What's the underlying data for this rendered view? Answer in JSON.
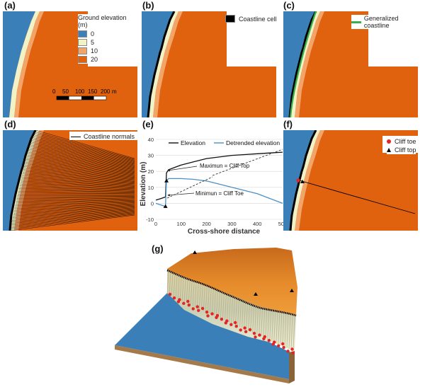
{
  "colors": {
    "sea": "#3b7fb8",
    "e5": "#f1f2c6",
    "e10": "#f3a469",
    "e20": "#e0620f",
    "coastline": "#000000",
    "generalized": "#36b04a",
    "elevation_line": "#111111",
    "detrended_line": "#4a90c8",
    "toe": "#e52424",
    "top": "#000000"
  },
  "panels": {
    "a": {
      "label": "(a)",
      "legend_title": "Ground elevation (m)",
      "legend": [
        {
          "value": "0",
          "color": "#3b7fb8"
        },
        {
          "value": "5",
          "color": "#f1f2c6"
        },
        {
          "value": "10",
          "color": "#f3a469"
        },
        {
          "value": "20",
          "color": "#e0620f"
        }
      ],
      "scale_ticks": [
        "0",
        "50",
        "100",
        "150",
        "200"
      ],
      "scale_unit": "m"
    },
    "b": {
      "label": "(b)",
      "legend": "Coastline cell"
    },
    "c": {
      "label": "(c)",
      "legend": "Generalized coastline"
    },
    "d": {
      "label": "(d)",
      "legend": "Coastline normals"
    },
    "e": {
      "label": "(e)",
      "legend_elevation": "Elevation",
      "legend_detrended": "Detrended elevation",
      "annotation_max": "Maximun = Cliff Top",
      "annotation_min": "Minimun = Cliff Toe"
    },
    "f": {
      "label": "(f)",
      "legend_toe": "Cliff toe",
      "legend_top": "Cliff top"
    },
    "g": {
      "label": "(g)"
    }
  },
  "chart_data": {
    "type": "line",
    "xlabel": "Cross-shore distance",
    "ylabel": "Elevation (m)",
    "xlim": [
      0,
      500
    ],
    "ylim": [
      -10,
      40
    ],
    "xticks": [
      "0",
      "100",
      "200",
      "300",
      "400",
      "500"
    ],
    "yticks": [
      "-10",
      "0",
      "10",
      "20",
      "30",
      "40"
    ],
    "series": [
      {
        "name": "Elevation",
        "x": [
          0,
          20,
          38,
          42,
          50,
          100,
          150,
          200,
          250,
          300,
          350,
          400,
          450,
          500
        ],
        "y": [
          2,
          3,
          4,
          19,
          21,
          24,
          26,
          28,
          29,
          30,
          30.5,
          31,
          31.5,
          32
        ]
      },
      {
        "name": "Detrended elevation",
        "x": [
          0,
          20,
          38,
          42,
          50,
          100,
          150,
          200,
          250,
          300,
          350,
          400,
          450,
          500
        ],
        "y": [
          0,
          -1,
          -2,
          14,
          15.5,
          15.5,
          15,
          14,
          12,
          10,
          8,
          6,
          3,
          0
        ]
      }
    ]
  }
}
